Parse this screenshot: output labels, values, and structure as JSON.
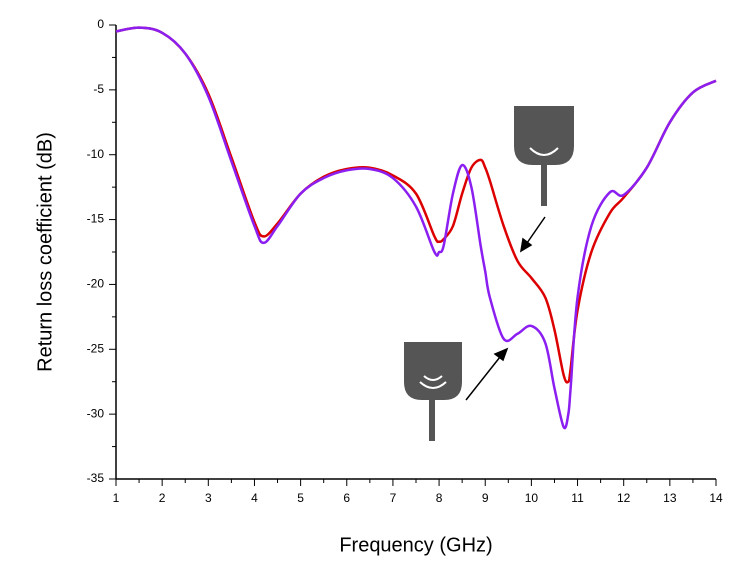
{
  "chart_data": {
    "type": "line",
    "x_label": "Frequency (GHz)",
    "y_label": "Return loss coefficient (dB)",
    "x": [
      1,
      1.5,
      2,
      2.5,
      3,
      3.5,
      4,
      4.2,
      4.5,
      5,
      5.5,
      6,
      6.5,
      7,
      7.5,
      7.9,
      8,
      8.1,
      8.3,
      8.5,
      8.7,
      8.9,
      9,
      9.1,
      9.4,
      9.7,
      10,
      10.3,
      10.5,
      10.7,
      10.8,
      10.85,
      11,
      11.3,
      11.7,
      12,
      12.5,
      13,
      13.5,
      14
    ],
    "series": [
      {
        "color": "#dd0000",
        "values": [
          -0.5,
          -0.2,
          -0.6,
          -2.2,
          -5.3,
          -10.2,
          -15.2,
          -16.3,
          -15.3,
          -13,
          -11.7,
          -11.1,
          -11,
          -11.6,
          -13,
          -16.3,
          -16.7,
          -16.5,
          -15.5,
          -13,
          -11,
          -10.4,
          -11,
          -12,
          -15.5,
          -18.2,
          -19.5,
          -21,
          -23.5,
          -27,
          -27.5,
          -26.5,
          -22,
          -17.5,
          -14.5,
          -13.3,
          -11,
          -7.5,
          -5.2,
          -4.3
        ]
      },
      {
        "color": "#8b1ef0",
        "values": [
          -0.5,
          -0.2,
          -0.6,
          -2.2,
          -5.5,
          -10.5,
          -15.5,
          -16.8,
          -15.5,
          -13,
          -11.8,
          -11.2,
          -11.1,
          -11.8,
          -14,
          -17.5,
          -17.5,
          -17,
          -13,
          -10.8,
          -12.5,
          -17,
          -19,
          -21,
          -24.2,
          -23.8,
          -23.2,
          -24.5,
          -28,
          -31,
          -30,
          -28,
          -21,
          -15.5,
          -12.9,
          -13.1,
          -11,
          -7.5,
          -5.2,
          -4.3
        ]
      }
    ],
    "xlim": [
      1,
      14
    ],
    "xticks": [
      1,
      2,
      3,
      4,
      5,
      6,
      7,
      8,
      9,
      10,
      11,
      12,
      13,
      14
    ],
    "ylim": [
      -35,
      0
    ],
    "yticks": [
      0,
      -5,
      -10,
      -15,
      -20,
      -25,
      -30,
      -35
    ]
  }
}
